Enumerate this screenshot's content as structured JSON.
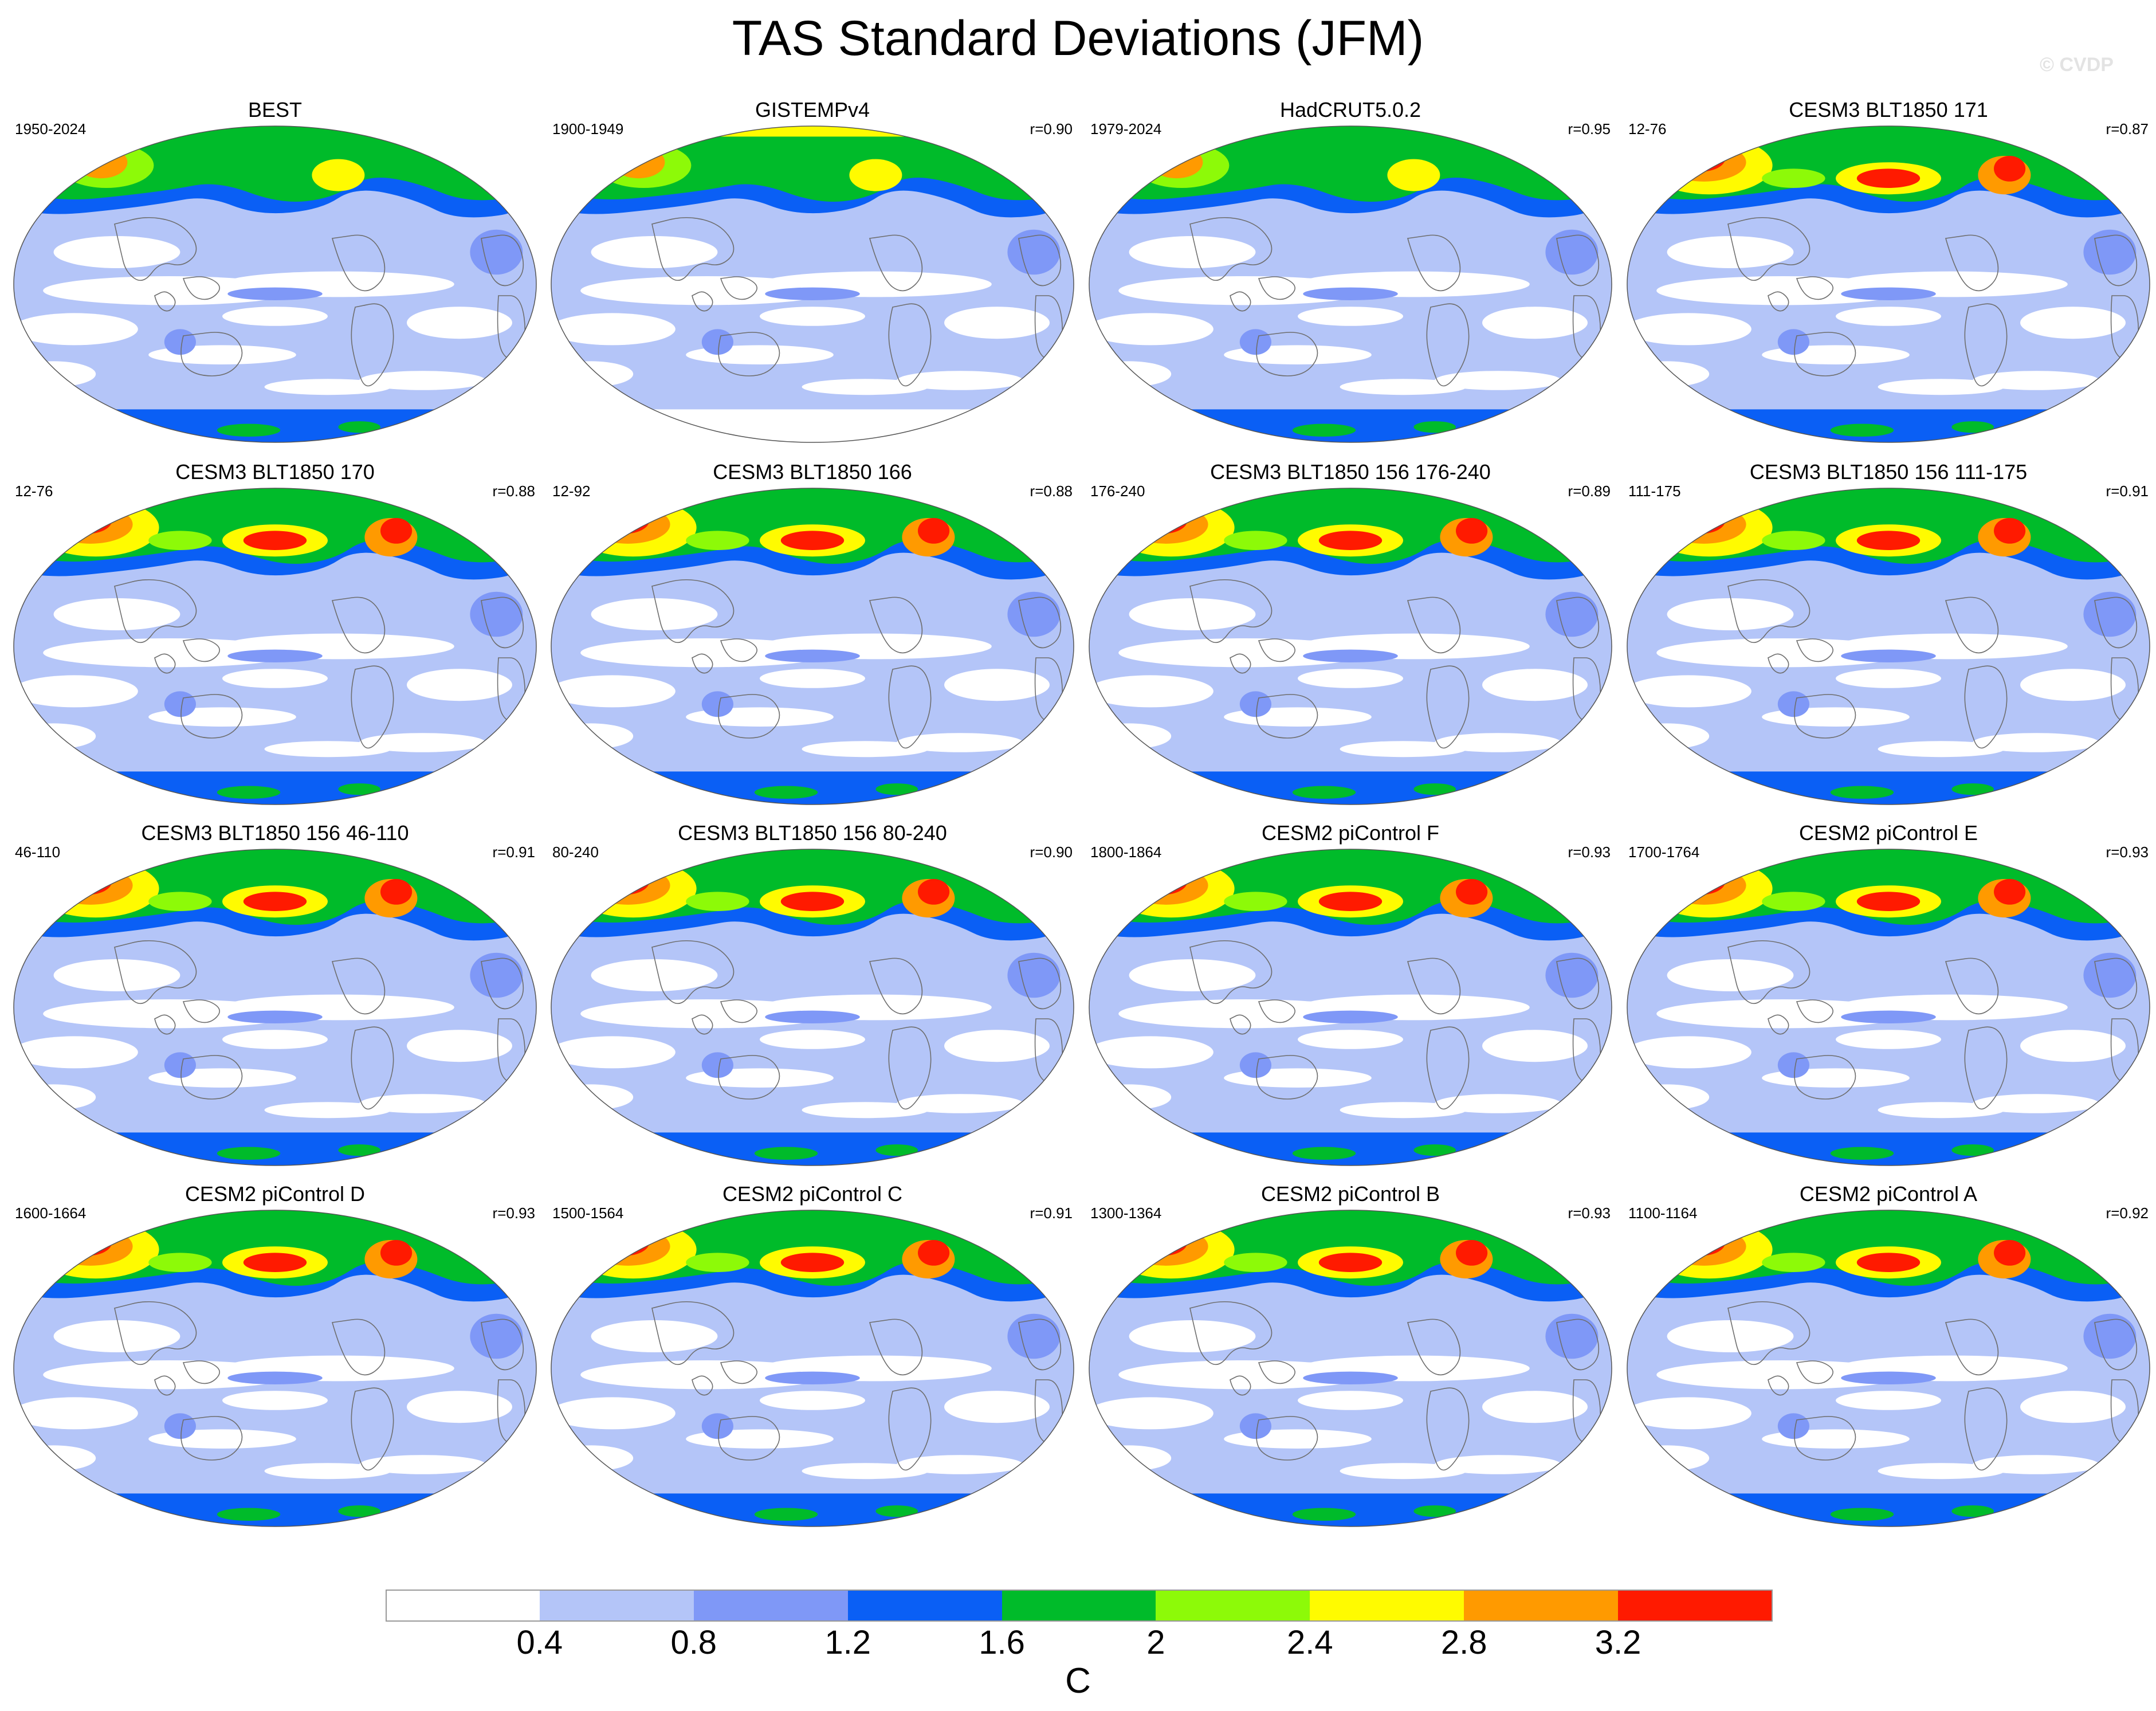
{
  "title": "TAS Standard Deviations (JFM)",
  "copyright": "© CVDP",
  "colors": {
    "levels": [
      "#ffffff",
      "#b4c5f8",
      "#7f98f7",
      "#0a5ff5",
      "#00bb2a",
      "#8dfa08",
      "#fffb00",
      "#ff9a00",
      "#ff1a00"
    ],
    "ocean_base": "#b4c5f8",
    "coastline": "#6e6e6e"
  },
  "panels": [
    {
      "title": "BEST",
      "left": "1950-2024",
      "right": "",
      "icon": "map-best"
    },
    {
      "title": "GISTEMPv4",
      "left": "1900-1949",
      "right": "r=0.90",
      "icon": "map-gistemp"
    },
    {
      "title": "HadCRUT5.0.2",
      "left": "1979-2024",
      "right": "r=0.95",
      "icon": "map-hadcrut"
    },
    {
      "title": "CESM3 BLT1850 171",
      "left": "12-76",
      "right": "r=0.87",
      "icon": "map-cesm3"
    },
    {
      "title": "CESM3 BLT1850 170",
      "left": "12-76",
      "right": "r=0.88",
      "icon": "map-cesm3"
    },
    {
      "title": "CESM3 BLT1850 166",
      "left": "12-92",
      "right": "r=0.88",
      "icon": "map-cesm3"
    },
    {
      "title": "CESM3 BLT1850 156 176-240",
      "left": "176-240",
      "right": "r=0.89",
      "icon": "map-cesm3"
    },
    {
      "title": "CESM3 BLT1850 156 111-175",
      "left": "111-175",
      "right": "r=0.91",
      "icon": "map-cesm3"
    },
    {
      "title": "CESM3 BLT1850 156 46-110",
      "left": "46-110",
      "right": "r=0.91",
      "icon": "map-cesm3"
    },
    {
      "title": "CESM3 BLT1850 156 80-240",
      "left": "80-240",
      "right": "r=0.90",
      "icon": "map-cesm3"
    },
    {
      "title": "CESM2 piControl F",
      "left": "1800-1864",
      "right": "r=0.93",
      "icon": "map-cesm2"
    },
    {
      "title": "CESM2 piControl E",
      "left": "1700-1764",
      "right": "r=0.93",
      "icon": "map-cesm2"
    },
    {
      "title": "CESM2 piControl D",
      "left": "1600-1664",
      "right": "r=0.93",
      "icon": "map-cesm2"
    },
    {
      "title": "CESM2 piControl C",
      "left": "1500-1564",
      "right": "r=0.91",
      "icon": "map-cesm2"
    },
    {
      "title": "CESM2 piControl B",
      "left": "1300-1364",
      "right": "r=0.93",
      "icon": "map-cesm2"
    },
    {
      "title": "CESM2 piControl A",
      "left": "1100-1164",
      "right": "r=0.92",
      "icon": "map-cesm2"
    }
  ],
  "colorbar": {
    "ticks": [
      "0.4",
      "0.8",
      "1.2",
      "1.6",
      "2",
      "2.4",
      "2.8",
      "3.2"
    ],
    "units": "C"
  }
}
